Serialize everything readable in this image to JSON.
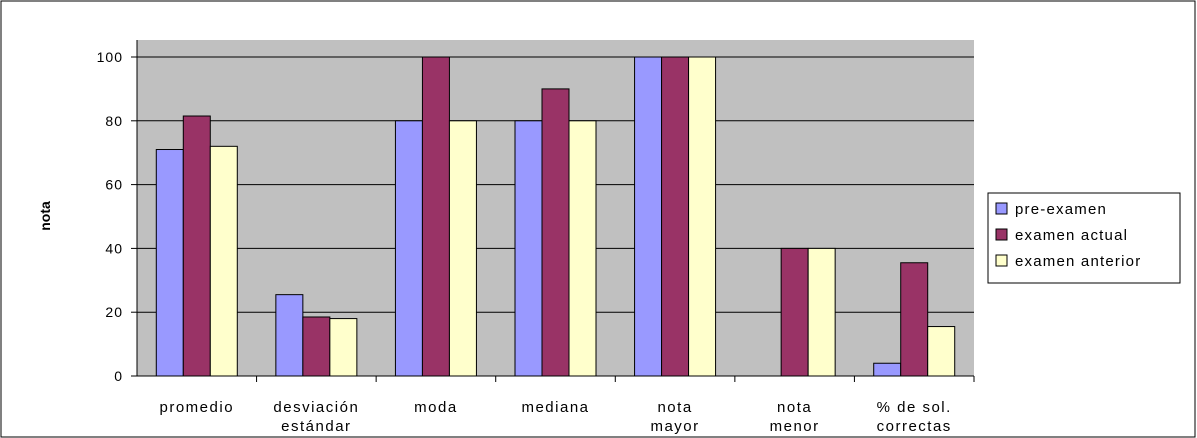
{
  "chart_data": {
    "type": "bar",
    "title": "",
    "xlabel": "",
    "ylabel": "nota",
    "ylim": [
      0,
      100
    ],
    "yticks": [
      "0",
      "20",
      "40",
      "60",
      "80",
      "100"
    ],
    "grid": true,
    "legend_position": "right",
    "categories": [
      [
        "promedio"
      ],
      [
        "desviación",
        "estándar"
      ],
      [
        "moda"
      ],
      [
        "mediana"
      ],
      [
        "nota",
        "mayor"
      ],
      [
        "nota",
        "menor"
      ],
      [
        "% de sol.",
        "correctas"
      ]
    ],
    "series": [
      {
        "name": "pre-examen",
        "color": "#9999ff",
        "values": [
          71,
          25.5,
          80,
          80,
          100,
          0,
          4
        ]
      },
      {
        "name": "examen actual",
        "color": "#993366",
        "values": [
          81.5,
          18.5,
          100,
          90,
          100,
          40,
          35.5
        ]
      },
      {
        "name": "examen anterior",
        "color": "#ffffcc",
        "values": [
          72,
          18,
          80,
          80,
          100,
          40,
          15.5
        ]
      }
    ],
    "colors": {
      "plot_background": "#c0c0c0",
      "gridline": "#000000",
      "frame": "#000000"
    }
  }
}
